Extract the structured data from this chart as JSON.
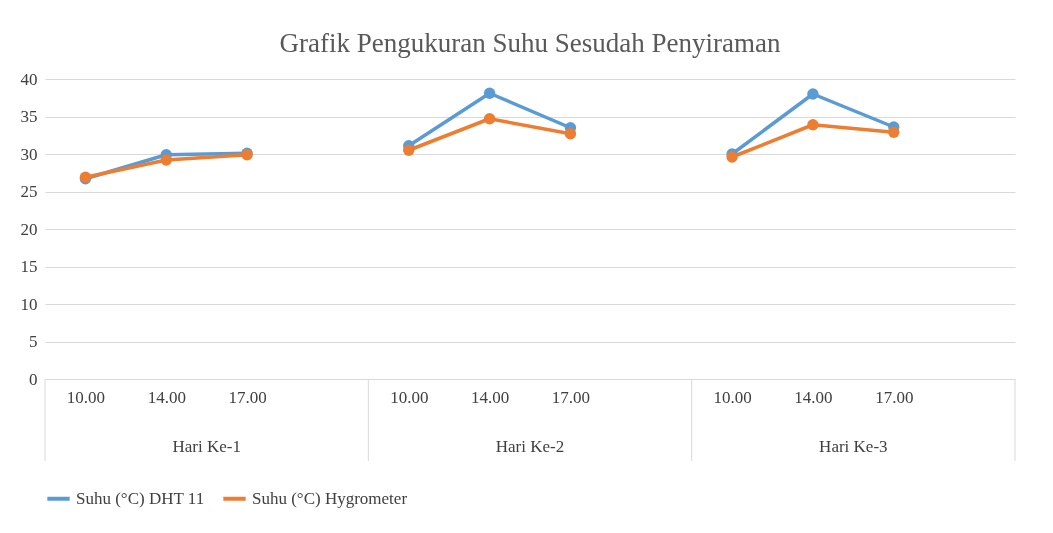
{
  "chart_data": {
    "type": "line",
    "title": "Grafik Pengukuran Suhu Sesudah Penyiraman",
    "categories": [
      "10.00",
      "14.00",
      "17.00",
      null,
      "10.00",
      "14.00",
      "17.00",
      null,
      "10.00",
      "14.00",
      "17.00",
      null
    ],
    "series": [
      {
        "name": "Suhu (°C) DHT 11",
        "color": "#5b9bd5",
        "values": [
          26.7,
          29.9,
          30.1,
          null,
          31.1,
          38.1,
          33.5,
          null,
          30.0,
          38.0,
          33.6,
          null
        ]
      },
      {
        "name": "Suhu (°C) Hygrometer",
        "color": "#ed7d31",
        "values": [
          26.9,
          29.2,
          29.9,
          null,
          30.5,
          34.7,
          32.7,
          null,
          29.6,
          33.9,
          32.9,
          null
        ]
      }
    ],
    "annotations": [
      "Hari Ke-1",
      "Hari Ke-2",
      "Hari Ke-3"
    ],
    "ylim": [
      0,
      40
    ],
    "yticks": [
      0,
      5,
      10,
      15,
      20,
      25,
      30,
      35,
      40
    ],
    "grid": "y",
    "legend": "bottom",
    "marker": "circle",
    "line_style": "solid"
  }
}
